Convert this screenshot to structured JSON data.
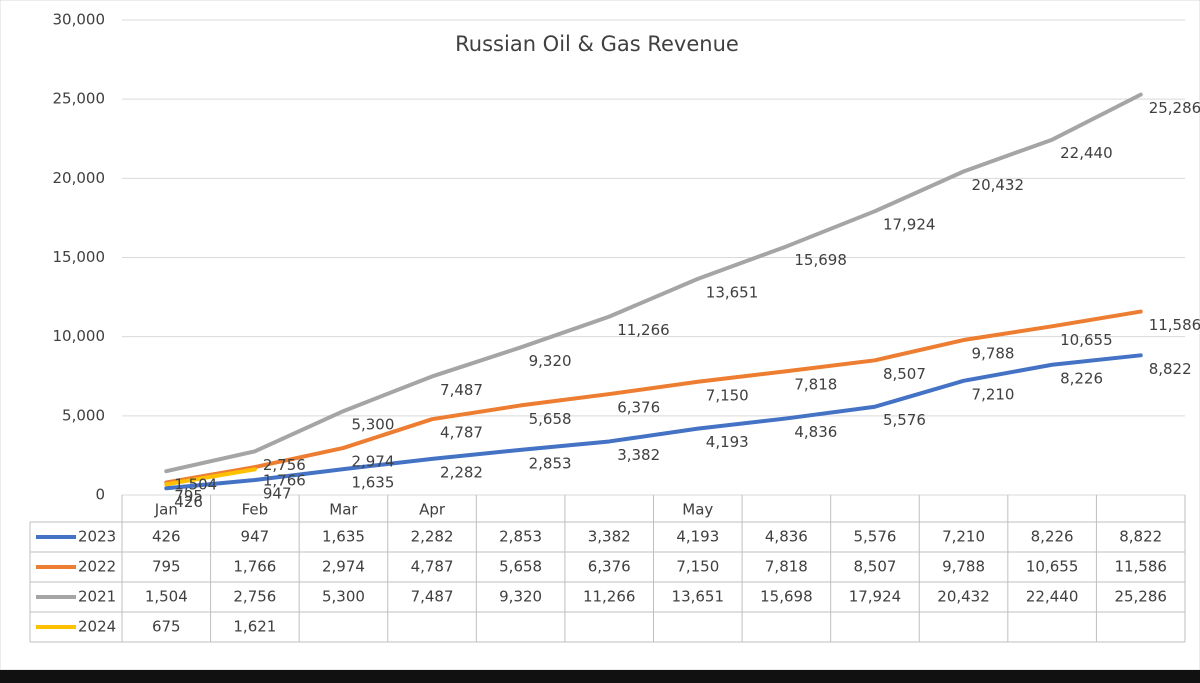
{
  "chart_data": {
    "type": "line",
    "title": "Russian Oil & Gas Revenue",
    "categories": [
      "Jan",
      "Feb",
      "Mar",
      "Apr",
      null,
      null,
      "May",
      null,
      null,
      null,
      null,
      null
    ],
    "ylim": [
      0,
      30000
    ],
    "yticks": [
      0,
      {
        "value": 5000,
        "label": "5,000"
      },
      {
        "value": 10000,
        "label": "10,000"
      },
      {
        "value": 15000,
        "label": "15,000"
      },
      {
        "value": 20000,
        "label": "20,000"
      },
      {
        "value": 25000,
        "label": "25,000"
      },
      {
        "value": 30000,
        "label": "30,000"
      }
    ],
    "grid": true,
    "series": [
      {
        "name": "2023",
        "color": "#4472c4",
        "values": [
          426,
          947,
          1635,
          2282,
          2853,
          3382,
          4193,
          4836,
          5576,
          7210,
          8226,
          8822
        ],
        "value_labels": [
          "426",
          "947",
          "1,635",
          "2,282",
          "2,853",
          "3,382",
          "4,193",
          "4,836",
          "5,576",
          "7,210",
          "8,226",
          "8,822"
        ]
      },
      {
        "name": "2022",
        "color": "#ed7d31",
        "values": [
          795,
          1766,
          2974,
          4787,
          5658,
          6376,
          7150,
          7818,
          8507,
          9788,
          10655,
          11586
        ],
        "value_labels": [
          "795",
          "1,766",
          "2,974",
          "4,787",
          "5,658",
          "6,376",
          "7,150",
          "7,818",
          "8,507",
          "9,788",
          "10,655",
          "11,586"
        ]
      },
      {
        "name": "2021",
        "color": "#a5a5a5",
        "values": [
          1504,
          2756,
          5300,
          7487,
          9320,
          11266,
          13651,
          15698,
          17924,
          20432,
          22440,
          25286
        ],
        "value_labels": [
          "1,504",
          "2,756",
          "5,300",
          "7,487",
          "9,320",
          "11,266",
          "13,651",
          "15,698",
          "17,924",
          "20,432",
          "22,440",
          "25,286"
        ]
      },
      {
        "name": "2024",
        "color": "#ffc000",
        "values": [
          675,
          1621,
          null,
          null,
          null,
          null,
          null,
          null,
          null,
          null,
          null,
          null
        ],
        "value_labels": [
          "675",
          "1,621",
          null,
          null,
          null,
          null,
          null,
          null,
          null,
          null,
          null,
          null
        ]
      }
    ]
  }
}
